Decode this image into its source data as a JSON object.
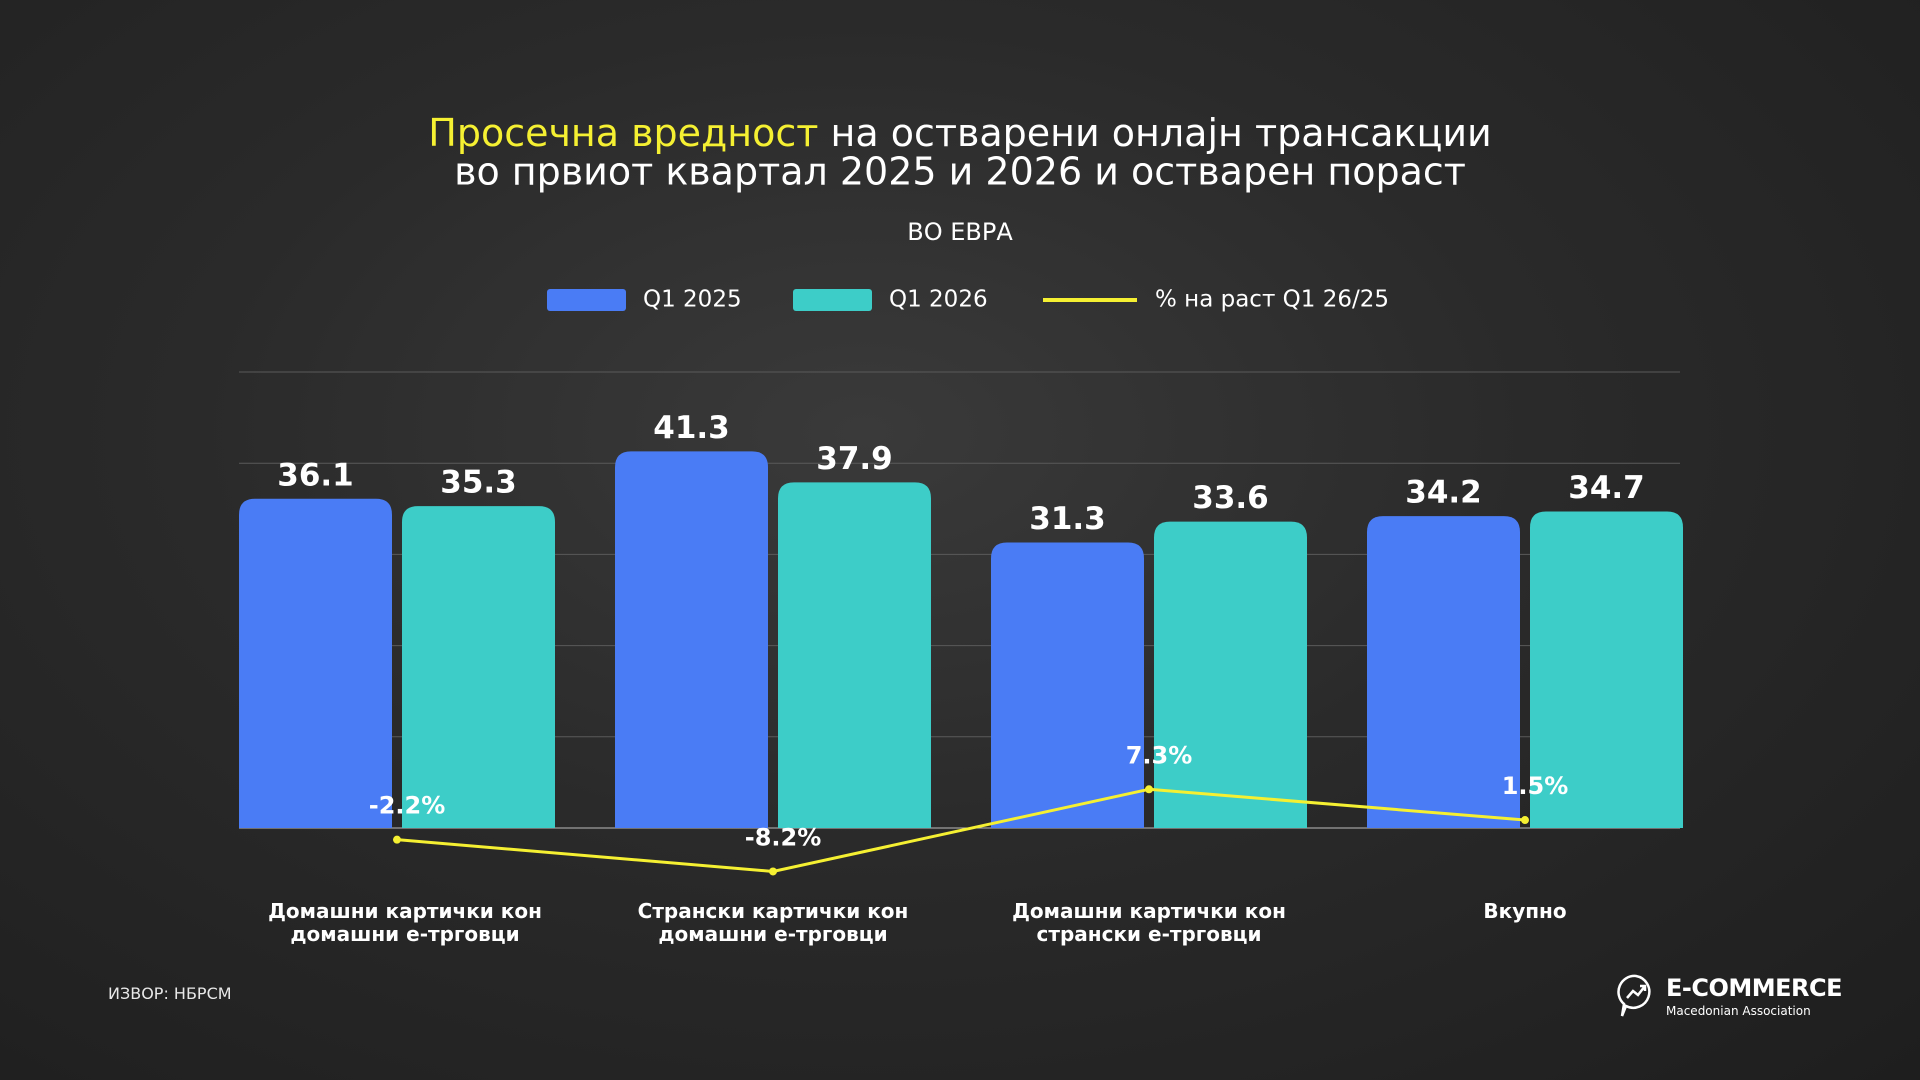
{
  "chart_data": {
    "type": "bar",
    "title": [
      "Просечна вредност",
      "на остварени онлајн трансакции",
      "во првиот квартал 2025 и 2026 и остварен пораст"
    ],
    "subtitle": "ВО ЕВРА",
    "categories": [
      "Домашни картички кон домашни е-трговци",
      "Странски картички кон домашни е-трговци",
      "Домашни картички кон странски е-трговци",
      "Вкупно"
    ],
    "series": [
      {
        "name": "Q1 2025",
        "type": "bar",
        "color": "#4a7cf5",
        "values": [
          36.1,
          41.3,
          31.3,
          34.2
        ]
      },
      {
        "name": "Q1 2026",
        "type": "bar",
        "color": "#3dcdc8",
        "values": [
          35.3,
          37.9,
          33.6,
          34.7
        ]
      },
      {
        "name": "% на раст Q1 26/25",
        "type": "line",
        "axis": "y2",
        "color": "#f5f032",
        "values": [
          -2.2,
          -8.2,
          7.3,
          1.5
        ],
        "value_labels": [
          "-2.2%",
          "-8.2%",
          "7.3%",
          "1.5%"
        ]
      }
    ],
    "ylim": [
      0,
      50
    ],
    "yticks": [
      0,
      10,
      20,
      30,
      40,
      50
    ],
    "grid": true,
    "y2lim": [
      0,
      86
    ]
  },
  "source": "ИЗВОР: НБРСМ",
  "logo": {
    "name": "E-COMMERCE",
    "tagline": "Macedonian Association"
  }
}
